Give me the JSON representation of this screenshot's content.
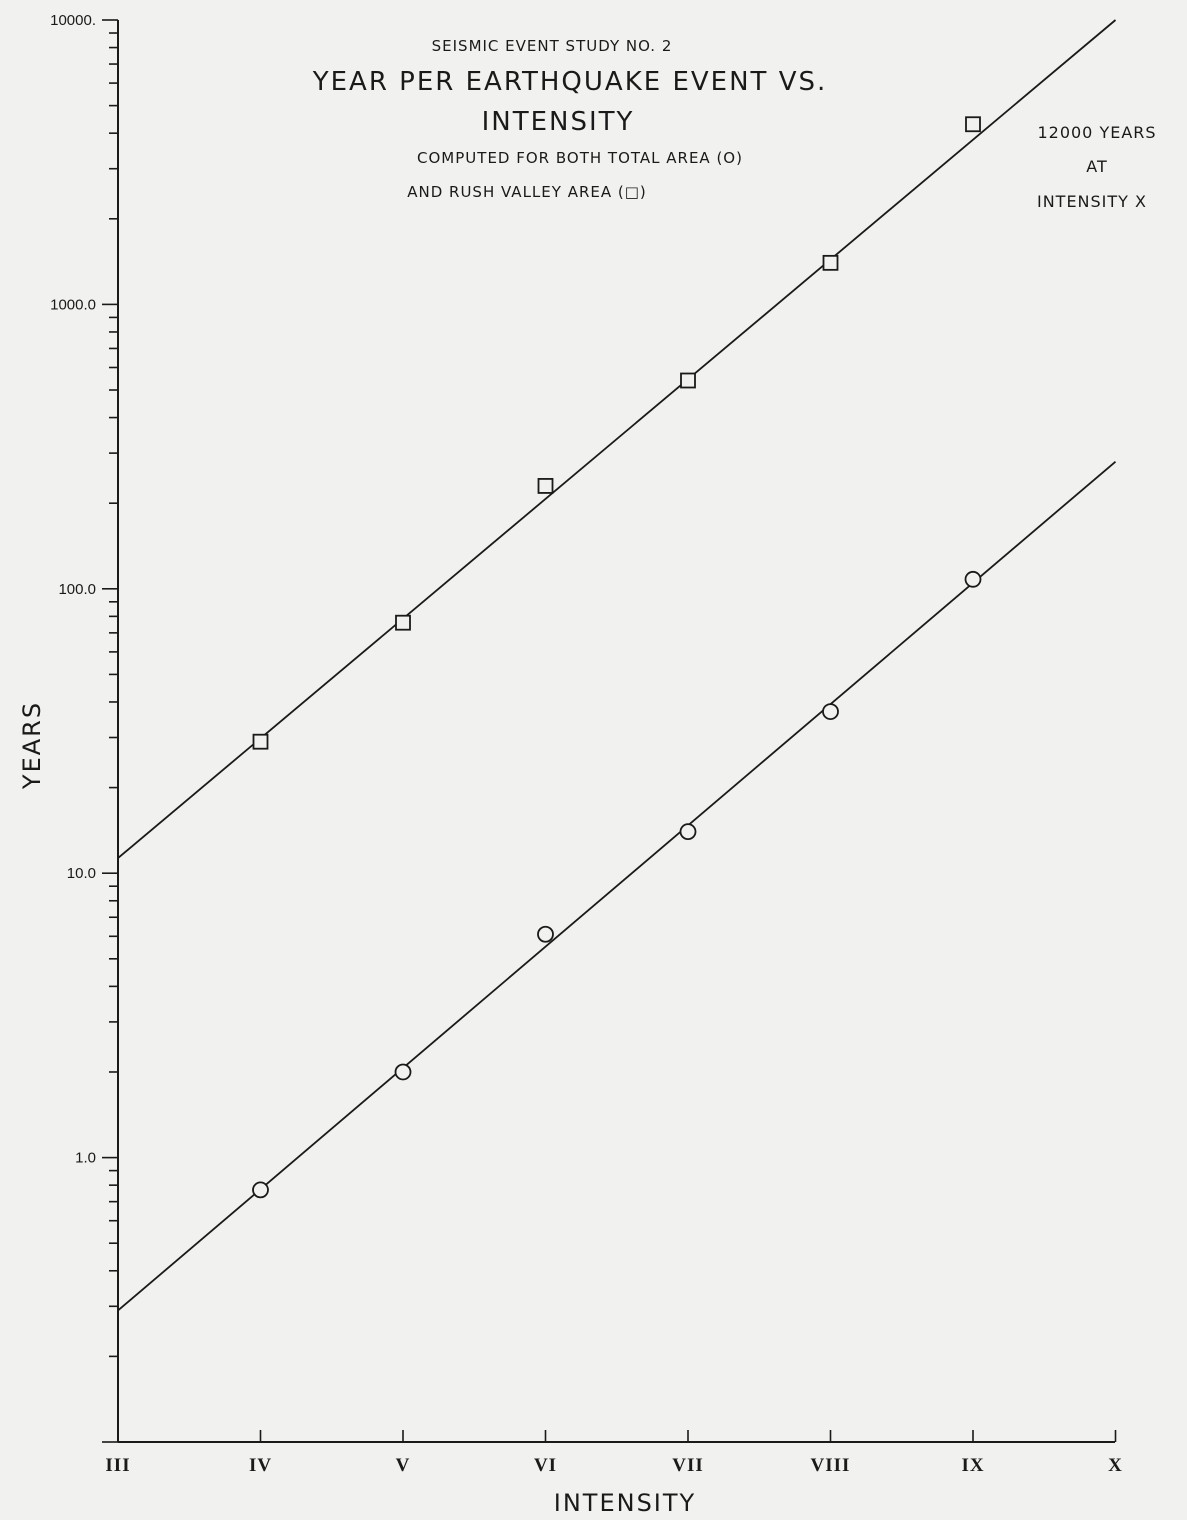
{
  "chart_data": {
    "type": "scatter",
    "title_lines": [
      "SEISMIC EVENT STUDY NO. 2",
      "YEAR PER EARTHQUAKE EVENT VS.",
      "INTENSITY"
    ],
    "subtitle_lines": [
      "COMPUTED FOR BOTH TOTAL AREA (O)",
      "AND RUSH VALLEY AREA (□)"
    ],
    "annotation_lines": [
      "12000 YEARS",
      "AT",
      "INTENSITY X"
    ],
    "xlabel": "INTENSITY",
    "ylabel": "YEARS",
    "y_scale": "log",
    "ylim": [
      0.1,
      10000
    ],
    "x_categories": [
      "III",
      "IV",
      "V",
      "VI",
      "VII",
      "VIII",
      "IX",
      "X"
    ],
    "y_tick_labels": [
      "1.0",
      "10.0",
      "100.0",
      "1000.0",
      "10000."
    ],
    "y_tick_values": [
      1,
      10,
      100,
      1000,
      10000
    ],
    "grid": false,
    "series": [
      {
        "marker": "square",
        "x": [
          "IV",
          "V",
          "VI",
          "VII",
          "VIII",
          "IX"
        ],
        "values": [
          29,
          76,
          230,
          540,
          1400,
          4300
        ],
        "fit_line": {
          "x_start": "III",
          "y_start": 11.3,
          "x_end": "X",
          "y_end": 10000
        }
      },
      {
        "marker": "circle",
        "x": [
          "IV",
          "V",
          "VI",
          "VII",
          "VIII",
          "IX"
        ],
        "values": [
          0.77,
          2.0,
          6.1,
          14,
          37,
          108
        ],
        "fit_line": {
          "x_start": "III",
          "y_start": 0.29,
          "x_end": "X",
          "y_end": 280
        }
      }
    ]
  }
}
